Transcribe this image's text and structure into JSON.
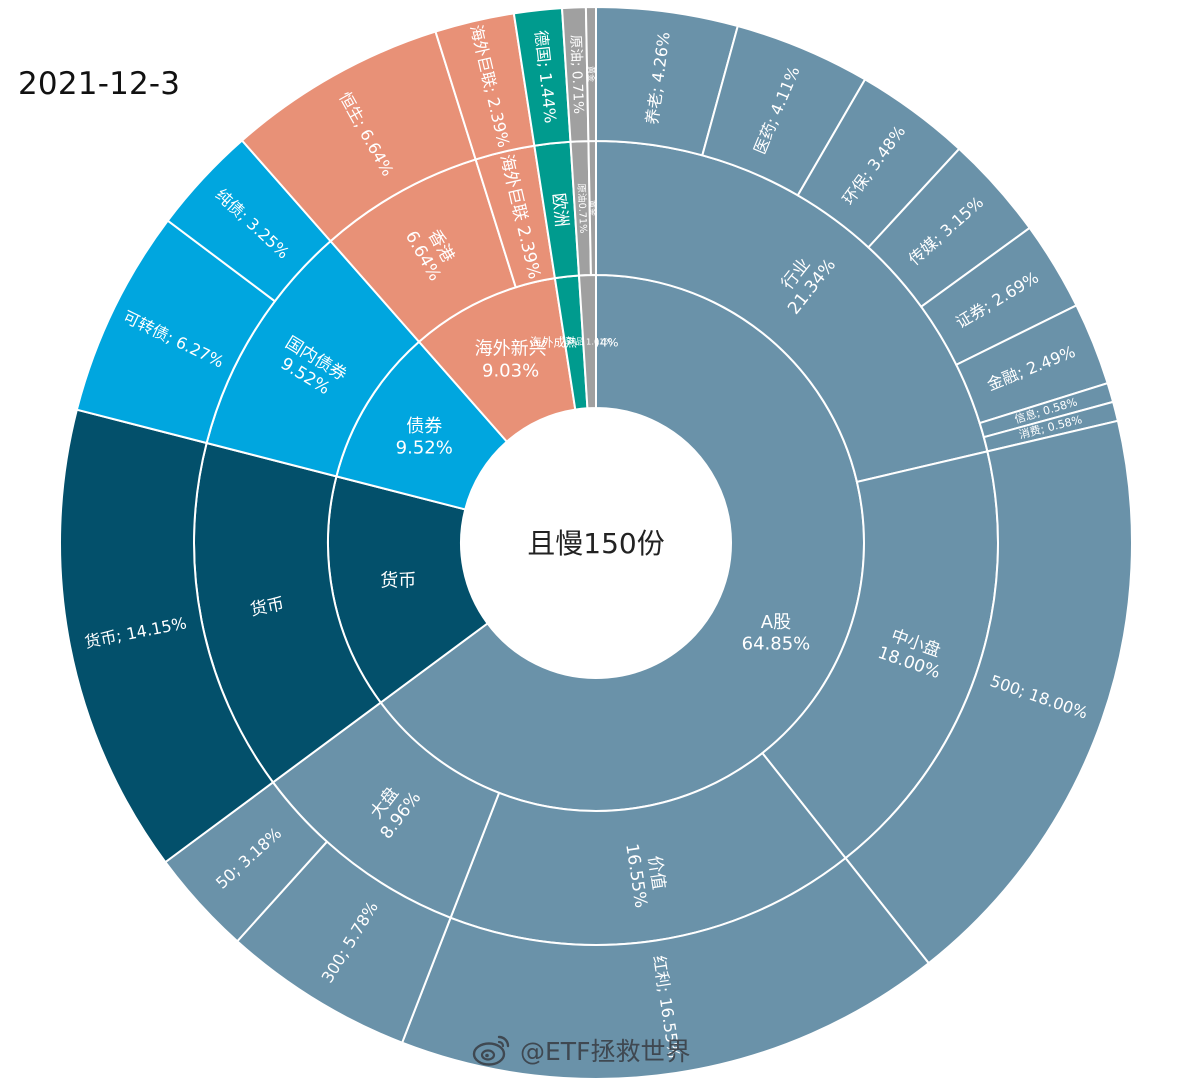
{
  "date": "2021-12-3",
  "watermark": "@ETF拯救世界",
  "chart_data": {
    "type": "sunburst",
    "center_label": "且慢150份",
    "colors": {
      "A股": "#6a92a9",
      "货币": "#03506b",
      "债券": "#00a6df",
      "海外新兴": "#e89177",
      "海外成熟": "#009b8e",
      "商品": "#a0a0a0"
    },
    "rings": [
      [
        {
          "label": "A股",
          "value": 64.85,
          "group": "A股",
          "text": [
            "A股",
            "64.85%"
          ]
        },
        {
          "label": "货币",
          "value": 14.15,
          "group": "货币",
          "text": [
            "货币"
          ]
        },
        {
          "label": "债券",
          "value": 9.52,
          "group": "债券",
          "text": [
            "债券",
            "9.52%"
          ]
        },
        {
          "label": "海外新兴",
          "value": 9.03,
          "group": "海外新兴",
          "text": [
            "海外新兴",
            "9.03%"
          ]
        },
        {
          "label": "海外成熟",
          "value": 1.44,
          "group": "海外成熟",
          "text": [
            "海外成熟 1.44%"
          ]
        },
        {
          "label": "商品",
          "value": 1.01,
          "group": "商品",
          "text": [
            "商品 1.01%"
          ]
        }
      ],
      [
        {
          "label": "行业",
          "value": 21.34,
          "group": "A股",
          "text": [
            "行业",
            "21.34%"
          ]
        },
        {
          "label": "中小盘",
          "value": 18.0,
          "group": "A股",
          "text": [
            "中小盘",
            "18.00%"
          ]
        },
        {
          "label": "价值",
          "value": 16.55,
          "group": "A股",
          "text": [
            "价值",
            "16.55%"
          ]
        },
        {
          "label": "大盘",
          "value": 8.96,
          "group": "A股",
          "text": [
            "大盘",
            "8.96%"
          ]
        },
        {
          "label": "货币",
          "value": 14.15,
          "group": "货币",
          "text": [
            "货币"
          ]
        },
        {
          "label": "国内债券",
          "value": 9.52,
          "group": "债券",
          "text": [
            "国内债券",
            "9.52%"
          ]
        },
        {
          "label": "香港",
          "value": 6.64,
          "group": "海外新兴",
          "text": [
            "香港",
            "6.64%"
          ]
        },
        {
          "label": "海外巨联",
          "value": 2.39,
          "group": "海外新兴",
          "text": [
            "海外巨联 2.39%"
          ]
        },
        {
          "label": "欧洲",
          "value": 1.44,
          "group": "海外成熟",
          "text": [
            "欧洲"
          ]
        },
        {
          "label": "原油",
          "value": 0.71,
          "group": "商品",
          "text": [
            "原油0.71%"
          ]
        },
        {
          "label": "黄金",
          "value": 0.3,
          "group": "商品",
          "text": [
            "黄金"
          ]
        }
      ],
      [
        {
          "label": "养老",
          "value": 4.26,
          "group": "A股",
          "text": [
            "养老; 4.26%"
          ]
        },
        {
          "label": "医药",
          "value": 4.11,
          "group": "A股",
          "text": [
            "医药; 4.11%"
          ]
        },
        {
          "label": "环保",
          "value": 3.48,
          "group": "A股",
          "text": [
            "环保; 3.48%"
          ]
        },
        {
          "label": "传媒",
          "value": 3.15,
          "group": "A股",
          "text": [
            "传媒; 3.15%"
          ]
        },
        {
          "label": "证券",
          "value": 2.69,
          "group": "A股",
          "text": [
            "证券; 2.69%"
          ]
        },
        {
          "label": "金融",
          "value": 2.49,
          "group": "A股",
          "text": [
            "金融; 2.49%"
          ]
        },
        {
          "label": "信息",
          "value": 0.58,
          "group": "A股",
          "text": [
            "信息; 0.58%"
          ]
        },
        {
          "label": "消费",
          "value": 0.58,
          "group": "A股",
          "text": [
            "消费; 0.58%"
          ]
        },
        {
          "label": "500",
          "value": 18.0,
          "group": "A股",
          "text": [
            "500; 18.00%"
          ]
        },
        {
          "label": "红利",
          "value": 16.55,
          "group": "A股",
          "text": [
            "红利; 16.55%"
          ]
        },
        {
          "label": "300",
          "value": 5.78,
          "group": "A股",
          "text": [
            "300; 5.78%"
          ]
        },
        {
          "label": "50",
          "value": 3.18,
          "group": "A股",
          "text": [
            "50; 3.18%"
          ]
        },
        {
          "label": "货币",
          "value": 14.15,
          "group": "货币",
          "text": [
            "货币; 14.15%"
          ]
        },
        {
          "label": "可转债",
          "value": 6.27,
          "group": "债券",
          "text": [
            "可转债; 6.27%"
          ]
        },
        {
          "label": "纯债",
          "value": 3.25,
          "group": "债券",
          "text": [
            "纯债; 3.25%"
          ]
        },
        {
          "label": "恒生",
          "value": 6.64,
          "group": "海外新兴",
          "text": [
            "恒生; 6.64%"
          ]
        },
        {
          "label": "海外巨联",
          "value": 2.39,
          "group": "海外新兴",
          "text": [
            "海外巨联; 2.39%"
          ]
        },
        {
          "label": "德国",
          "value": 1.44,
          "group": "海外成熟",
          "text": [
            "德国; 1.44%"
          ]
        },
        {
          "label": "原油",
          "value": 0.71,
          "group": "商品",
          "text": [
            "原油; 0.71%"
          ]
        },
        {
          "label": "黄金",
          "value": 0.3,
          "group": "商品",
          "text": [
            "黄金"
          ]
        }
      ]
    ]
  }
}
